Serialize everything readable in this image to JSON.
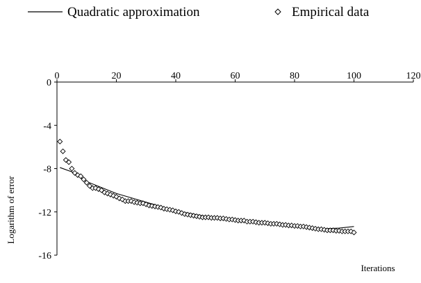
{
  "chart_data": {
    "type": "line",
    "title": "",
    "xlabel": "Iterations",
    "ylabel": "Logarithm of error",
    "xlim": [
      0,
      120
    ],
    "ylim": [
      -16,
      0
    ],
    "x_ticks": [
      0,
      20,
      40,
      60,
      80,
      100,
      120
    ],
    "y_ticks": [
      0,
      -4,
      -8,
      -12,
      -16
    ],
    "grid": false,
    "legend_position": "top",
    "series": [
      {
        "name": "Quadratic approximation",
        "type": "line",
        "color": "#000000",
        "x": [
          1,
          5,
          10,
          20,
          30,
          40,
          50,
          60,
          70,
          80,
          90,
          95,
          100
        ],
        "y": [
          -7.9,
          -8.3,
          -9.2,
          -10.3,
          -11.1,
          -11.9,
          -12.4,
          -12.8,
          -13.1,
          -13.35,
          -13.55,
          -13.5,
          -13.35
        ]
      },
      {
        "name": "Empirical data",
        "type": "scatter",
        "color": "#000000",
        "x": [
          1,
          2,
          3,
          4,
          5,
          6,
          7,
          8,
          9,
          10,
          11,
          12,
          13,
          14,
          15,
          16,
          17,
          18,
          19,
          20,
          21,
          22,
          23,
          24,
          25,
          26,
          27,
          28,
          29,
          30,
          31,
          32,
          33,
          34,
          35,
          36,
          37,
          38,
          39,
          40,
          41,
          42,
          43,
          44,
          45,
          46,
          47,
          48,
          49,
          50,
          51,
          52,
          53,
          54,
          55,
          56,
          57,
          58,
          59,
          60,
          61,
          62,
          63,
          64,
          65,
          66,
          67,
          68,
          69,
          70,
          71,
          72,
          73,
          74,
          75,
          76,
          77,
          78,
          79,
          80,
          81,
          82,
          83,
          84,
          85,
          86,
          87,
          88,
          89,
          90,
          91,
          92,
          93,
          94,
          95,
          96,
          97,
          98,
          99,
          100
        ],
        "y": [
          -5.5,
          -6.4,
          -7.2,
          -7.4,
          -8.0,
          -8.4,
          -8.6,
          -8.7,
          -9.0,
          -9.3,
          -9.6,
          -9.8,
          -9.8,
          -9.9,
          -10.0,
          -10.2,
          -10.3,
          -10.4,
          -10.5,
          -10.6,
          -10.75,
          -10.85,
          -11.0,
          -11.0,
          -11.0,
          -11.1,
          -11.15,
          -11.2,
          -11.2,
          -11.3,
          -11.4,
          -11.45,
          -11.5,
          -11.55,
          -11.6,
          -11.7,
          -11.75,
          -11.8,
          -11.85,
          -11.95,
          -12.0,
          -12.1,
          -12.2,
          -12.25,
          -12.3,
          -12.35,
          -12.4,
          -12.45,
          -12.5,
          -12.5,
          -12.5,
          -12.55,
          -12.55,
          -12.55,
          -12.6,
          -12.6,
          -12.65,
          -12.7,
          -12.7,
          -12.75,
          -12.8,
          -12.8,
          -12.8,
          -12.9,
          -12.9,
          -12.9,
          -12.95,
          -13.0,
          -13.0,
          -13.0,
          -13.05,
          -13.1,
          -13.1,
          -13.1,
          -13.15,
          -13.2,
          -13.2,
          -13.25,
          -13.25,
          -13.3,
          -13.3,
          -13.35,
          -13.35,
          -13.4,
          -13.45,
          -13.5,
          -13.55,
          -13.6,
          -13.6,
          -13.65,
          -13.7,
          -13.7,
          -13.7,
          -13.75,
          -13.75,
          -13.8,
          -13.8,
          -13.8,
          -13.8,
          -13.9
        ]
      }
    ]
  }
}
